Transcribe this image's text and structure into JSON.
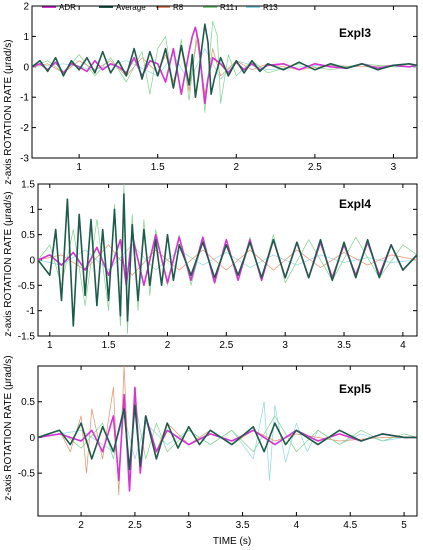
{
  "legend": {
    "position": "top-left",
    "entries": [
      {
        "name": "ADR",
        "color": "#d633d6"
      },
      {
        "name": "Average",
        "color": "#1d5c4a"
      },
      {
        "name": "R8",
        "color": "#e88e6a"
      },
      {
        "name": "R11",
        "color": "#7fd48e"
      },
      {
        "name": "R13",
        "color": "#8fd8e6"
      }
    ]
  },
  "ylabel": "z-axis ROTATION  RATE   (μrad/s)",
  "xlabel": "TIME (s)",
  "chart_data": [
    {
      "type": "line",
      "title": "Expl3",
      "xlim": [
        0.7,
        3.15
      ],
      "ylim": [
        -3,
        2
      ],
      "xticks": [
        "1",
        "1.5",
        "2",
        "2.5",
        "3"
      ],
      "xtick_values": [
        1,
        1.5,
        2,
        2.5,
        3
      ],
      "yticks": [
        "-3",
        "-2",
        "-1",
        "0",
        "1",
        "2"
      ],
      "ytick_values": [
        -3,
        -2,
        -1,
        0,
        1,
        2
      ],
      "grid": false,
      "series": [
        {
          "name": "ADR",
          "color": "#d633d6",
          "width": 1.6,
          "x": [
            0.7,
            0.75,
            0.8,
            0.85,
            0.9,
            0.95,
            1.0,
            1.05,
            1.1,
            1.15,
            1.2,
            1.25,
            1.3,
            1.35,
            1.4,
            1.45,
            1.5,
            1.55,
            1.6,
            1.65,
            1.7,
            1.72,
            1.74,
            1.76,
            1.78,
            1.8,
            1.82,
            1.85,
            1.9,
            1.95,
            2.0,
            2.05,
            2.1,
            2.15,
            2.2,
            2.3,
            2.4,
            2.5,
            2.6,
            2.7,
            2.8,
            2.9,
            3.0,
            3.1,
            3.15
          ],
          "y": [
            0,
            0.1,
            -0.1,
            0.15,
            -0.2,
            0.1,
            0,
            -0.15,
            0.2,
            -0.1,
            0.1,
            0,
            -0.2,
            0.3,
            -0.3,
            0.2,
            0.1,
            -0.5,
            0.6,
            -0.9,
            0.5,
            1.0,
            1.3,
            0.8,
            -0.2,
            -1.2,
            -0.4,
            0.3,
            0.1,
            -0.2,
            0.15,
            -0.1,
            0.1,
            -0.1,
            0.05,
            0.1,
            -0.1,
            0.1,
            0,
            -0.05,
            0.1,
            -0.05,
            0.05,
            0,
            0.05
          ]
        },
        {
          "name": "Average",
          "color": "#1d5c4a",
          "width": 1.6,
          "x": [
            0.7,
            0.75,
            0.8,
            0.85,
            0.9,
            0.95,
            1.0,
            1.05,
            1.1,
            1.15,
            1.2,
            1.25,
            1.3,
            1.35,
            1.4,
            1.45,
            1.5,
            1.55,
            1.6,
            1.65,
            1.7,
            1.72,
            1.74,
            1.76,
            1.78,
            1.8,
            1.82,
            1.84,
            1.86,
            1.9,
            1.95,
            2.0,
            2.05,
            2.1,
            2.15,
            2.2,
            2.3,
            2.4,
            2.5,
            2.6,
            2.7,
            2.8,
            2.9,
            3.0,
            3.1,
            3.15
          ],
          "y": [
            0,
            0.2,
            -0.15,
            0.3,
            -0.3,
            0.2,
            -0.1,
            0.3,
            -0.2,
            0.5,
            -0.2,
            0.2,
            -0.3,
            0.6,
            -0.4,
            0.5,
            -0.3,
            0.6,
            -0.7,
            0.7,
            -0.6,
            0.4,
            -1.0,
            -0.3,
            0.6,
            1.4,
            0.8,
            -0.9,
            -0.4,
            0.3,
            -0.3,
            0.2,
            -0.2,
            0.2,
            -0.15,
            0.1,
            -0.1,
            0.15,
            -0.1,
            0.1,
            -0.05,
            0.1,
            -0.1,
            0.05,
            0.1,
            0.05
          ]
        },
        {
          "name": "R8",
          "color": "#e88e6a",
          "width": 0.7,
          "x": [
            0.7,
            0.8,
            0.9,
            1.0,
            1.1,
            1.2,
            1.3,
            1.4,
            1.5,
            1.55,
            1.6,
            1.65,
            1.7,
            1.75,
            1.8,
            1.85,
            1.9,
            2.0,
            2.1,
            2.2,
            2.4,
            2.6,
            2.8,
            3.0,
            3.15
          ],
          "y": [
            0,
            0.1,
            -0.2,
            0.2,
            -0.1,
            0.2,
            -0.3,
            0.3,
            -0.2,
            0.4,
            -0.5,
            0.6,
            -0.8,
            0.9,
            -0.9,
            0.6,
            -0.3,
            0.2,
            -0.1,
            0.1,
            -0.1,
            0.05,
            0,
            0.05,
            0
          ]
        },
        {
          "name": "R11",
          "color": "#7fd48e",
          "width": 0.7,
          "x": [
            0.7,
            0.8,
            0.9,
            1.0,
            1.1,
            1.2,
            1.3,
            1.4,
            1.45,
            1.5,
            1.55,
            1.6,
            1.65,
            1.7,
            1.75,
            1.8,
            1.85,
            1.88,
            1.9,
            1.95,
            2.0,
            2.1,
            2.2,
            2.4,
            2.6,
            2.8,
            3.0,
            3.15
          ],
          "y": [
            0,
            0.2,
            -0.2,
            0.4,
            -0.3,
            0.3,
            -0.5,
            0.5,
            -0.9,
            0.6,
            1.0,
            -0.7,
            0.9,
            -1.1,
            1.2,
            -1.5,
            1.5,
            1.0,
            -1.2,
            0.4,
            -0.3,
            0.2,
            -0.2,
            0.1,
            -0.1,
            0.1,
            0,
            0
          ]
        },
        {
          "name": "R13",
          "color": "#8fd8e6",
          "width": 0.7,
          "x": [
            0.7,
            0.9,
            1.1,
            1.3,
            1.5,
            1.6,
            1.7,
            1.8,
            1.9,
            2.0,
            2.2,
            2.5,
            2.8,
            3.15
          ],
          "y": [
            0,
            0.1,
            -0.1,
            0.2,
            -0.3,
            0.4,
            -0.5,
            0.6,
            -0.4,
            0.2,
            -0.1,
            0.05,
            0,
            0
          ]
        }
      ]
    },
    {
      "type": "line",
      "title": "Expl4",
      "xlim": [
        0.9,
        4.12
      ],
      "ylim": [
        -1.5,
        1.5
      ],
      "xticks": [
        "1",
        "1.5",
        "2",
        "2.5",
        "3",
        "3.5",
        "4"
      ],
      "xtick_values": [
        1,
        1.5,
        2,
        2.5,
        3,
        3.5,
        4
      ],
      "yticks": [
        "-1.5",
        "-1",
        "-0.5",
        "0",
        "0.5",
        "1",
        "1.5"
      ],
      "ytick_values": [
        -1.5,
        -1,
        -0.5,
        0,
        0.5,
        1,
        1.5
      ],
      "grid": false,
      "series": [
        {
          "name": "ADR",
          "color": "#d633d6",
          "width": 1.6,
          "x": [
            0.9,
            1.0,
            1.1,
            1.2,
            1.3,
            1.4,
            1.5,
            1.6,
            1.65,
            1.7,
            1.8,
            1.9,
            2.0,
            2.1,
            2.2,
            2.3,
            2.4,
            2.5,
            2.6,
            2.7,
            2.8,
            2.9,
            3.0,
            3.1,
            3.2,
            3.3,
            3.4,
            3.5,
            3.6,
            3.7,
            3.8,
            3.9,
            4.0,
            4.12
          ],
          "y": [
            0,
            0.1,
            -0.1,
            0.15,
            -0.2,
            0.25,
            -0.3,
            0.4,
            -0.5,
            0.5,
            -0.5,
            0.5,
            -0.45,
            0.45,
            -0.4,
            0.45,
            -0.45,
            0.4,
            -0.4,
            0.4,
            -0.4,
            0.4,
            -0.35,
            0.35,
            -0.35,
            0.35,
            -0.35,
            0.3,
            -0.3,
            0.35,
            -0.3,
            0.3,
            -0.2,
            0.1
          ]
        },
        {
          "name": "Average",
          "color": "#1d5c4a",
          "width": 1.6,
          "x": [
            0.9,
            1.0,
            1.05,
            1.1,
            1.15,
            1.2,
            1.25,
            1.3,
            1.35,
            1.4,
            1.45,
            1.5,
            1.55,
            1.6,
            1.63,
            1.66,
            1.7,
            1.75,
            1.8,
            1.85,
            1.9,
            1.95,
            2.0,
            2.05,
            2.1,
            2.2,
            2.3,
            2.4,
            2.5,
            2.6,
            2.7,
            2.8,
            2.9,
            3.0,
            3.1,
            3.2,
            3.3,
            3.4,
            3.5,
            3.6,
            3.7,
            3.8,
            3.9,
            4.0,
            4.12
          ],
          "y": [
            0,
            -0.3,
            0.6,
            -0.8,
            1.2,
            -1.3,
            0.9,
            -0.7,
            0.8,
            -0.9,
            0.6,
            -0.8,
            1.0,
            -1.1,
            1.3,
            -1.2,
            0.7,
            -0.8,
            0.6,
            -0.5,
            0.4,
            -0.5,
            0.5,
            -0.4,
            0.3,
            -0.3,
            0.35,
            -0.35,
            0.3,
            -0.3,
            0.35,
            -0.35,
            0.4,
            -0.35,
            0.35,
            -0.35,
            0.4,
            -0.4,
            0.35,
            -0.35,
            0.4,
            -0.35,
            0.3,
            -0.2,
            0.1
          ]
        },
        {
          "name": "R8",
          "color": "#e88e6a",
          "width": 0.7,
          "x": [
            0.9,
            1.1,
            1.3,
            1.5,
            1.7,
            1.9,
            2.1,
            2.3,
            2.5,
            2.7,
            2.9,
            3.1,
            3.3,
            3.5,
            3.7,
            3.9,
            4.12
          ],
          "y": [
            0,
            0.1,
            -0.2,
            0.3,
            -0.3,
            0.2,
            -0.2,
            0.2,
            -0.2,
            0.2,
            -0.2,
            0.2,
            -0.15,
            0.15,
            -0.1,
            0.1,
            0
          ]
        },
        {
          "name": "R11",
          "color": "#7fd48e",
          "width": 0.7,
          "x": [
            0.9,
            1.0,
            1.1,
            1.2,
            1.3,
            1.4,
            1.5,
            1.55,
            1.6,
            1.63,
            1.66,
            1.7,
            1.75,
            1.8,
            1.85,
            1.9,
            2.0,
            2.1,
            2.2,
            2.3,
            2.4,
            2.5,
            2.6,
            2.7,
            2.8,
            2.9,
            3.0,
            3.2,
            3.4,
            3.6,
            3.8,
            4.0,
            4.12
          ],
          "y": [
            0,
            0.3,
            -0.5,
            0.6,
            -0.9,
            0.8,
            -1.0,
            1.1,
            -1.3,
            1.5,
            -1.45,
            0.9,
            -1.0,
            0.8,
            -0.7,
            0.6,
            -0.5,
            0.5,
            -0.5,
            0.4,
            -0.45,
            0.4,
            -0.4,
            0.45,
            -0.4,
            0.5,
            -0.45,
            0.4,
            -0.4,
            0.45,
            -0.35,
            0.3,
            0.1
          ]
        },
        {
          "name": "R13",
          "color": "#8fd8e6",
          "width": 0.7,
          "x": [
            0.9,
            1.1,
            1.3,
            1.5,
            1.7,
            1.9,
            2.1,
            2.3,
            2.5,
            2.7,
            2.9,
            3.1,
            3.3,
            3.5,
            3.7,
            3.9,
            4.12
          ],
          "y": [
            0,
            -0.1,
            0.2,
            -0.2,
            0.3,
            -0.2,
            0.2,
            -0.1,
            0.15,
            -0.15,
            0.1,
            -0.1,
            0.1,
            -0.05,
            0.05,
            -0.05,
            0
          ]
        }
      ]
    },
    {
      "type": "line",
      "title": "Expl5",
      "xlim": [
        1.6,
        5.12
      ],
      "ylim": [
        -1.1,
        1.0
      ],
      "xticks": [
        "2",
        "2.5",
        "3",
        "3.5",
        "4",
        "4.5",
        "5"
      ],
      "xtick_values": [
        2,
        2.5,
        3,
        3.5,
        4,
        4.5,
        5
      ],
      "yticks": [
        "-0.5",
        "0",
        "0.5"
      ],
      "ytick_values": [
        -0.5,
        0,
        0.5
      ],
      "grid": false,
      "series": [
        {
          "name": "ADR",
          "color": "#d633d6",
          "width": 1.6,
          "x": [
            1.6,
            1.8,
            2.0,
            2.1,
            2.2,
            2.3,
            2.35,
            2.4,
            2.45,
            2.5,
            2.55,
            2.6,
            2.7,
            2.8,
            3.0,
            3.2,
            3.4,
            3.6,
            3.8,
            4.0,
            4.2,
            4.4,
            4.6,
            4.8,
            5.0,
            5.12
          ],
          "y": [
            0,
            0.05,
            -0.05,
            0.1,
            -0.2,
            0.3,
            -0.6,
            0.6,
            -0.75,
            0.7,
            -0.5,
            0.3,
            -0.2,
            0.1,
            -0.1,
            0.05,
            -0.05,
            0.1,
            -0.1,
            0.1,
            -0.05,
            0.05,
            -0.05,
            0.05,
            0,
            0
          ]
        },
        {
          "name": "Average",
          "color": "#1d5c4a",
          "width": 1.6,
          "x": [
            1.6,
            1.8,
            1.9,
            2.0,
            2.1,
            2.2,
            2.3,
            2.4,
            2.45,
            2.5,
            2.55,
            2.6,
            2.7,
            2.8,
            2.9,
            3.0,
            3.1,
            3.2,
            3.4,
            3.6,
            3.7,
            3.8,
            3.9,
            4.0,
            4.2,
            4.4,
            4.6,
            4.8,
            5.0,
            5.12
          ],
          "y": [
            0,
            0.1,
            -0.1,
            0.2,
            -0.3,
            0.15,
            -0.2,
            0.4,
            -0.45,
            0.45,
            -0.4,
            0.3,
            -0.3,
            0.2,
            -0.15,
            0.15,
            -0.1,
            0.1,
            -0.1,
            0.15,
            -0.2,
            0.2,
            -0.1,
            0.1,
            -0.1,
            0.1,
            -0.05,
            0.05,
            0,
            0
          ]
        },
        {
          "name": "R8",
          "color": "#e88e6a",
          "width": 0.7,
          "x": [
            1.6,
            1.8,
            1.9,
            2.0,
            2.05,
            2.1,
            2.2,
            2.3,
            2.35,
            2.4,
            2.45,
            2.5,
            2.55,
            2.6,
            2.7,
            2.8,
            3.0,
            3.2,
            3.4,
            3.6,
            3.8,
            4.0,
            4.4,
            4.8,
            5.12
          ],
          "y": [
            0,
            0.1,
            -0.2,
            0.3,
            -0.5,
            0.4,
            -0.3,
            0.7,
            -0.8,
            1.0,
            -0.7,
            0.6,
            -0.5,
            0.3,
            -0.2,
            0.2,
            -0.1,
            0.1,
            -0.1,
            0.1,
            -0.05,
            0.05,
            -0.05,
            0,
            0
          ]
        },
        {
          "name": "R11",
          "color": "#7fd48e",
          "width": 0.7,
          "x": [
            1.6,
            1.8,
            2.0,
            2.2,
            2.3,
            2.4,
            2.45,
            2.5,
            2.6,
            2.7,
            2.8,
            3.0,
            3.2,
            3.4,
            3.6,
            3.8,
            4.0,
            4.2,
            4.4,
            4.6,
            4.8,
            5.0,
            5.12
          ],
          "y": [
            0,
            0.1,
            -0.15,
            0.2,
            -0.3,
            0.5,
            -0.6,
            0.5,
            -0.3,
            0.2,
            -0.2,
            0.1,
            -0.1,
            0.1,
            -0.2,
            0.3,
            -0.2,
            0.1,
            -0.1,
            0.1,
            -0.05,
            0.05,
            0
          ]
        },
        {
          "name": "R13",
          "color": "#8fd8e6",
          "width": 0.7,
          "x": [
            1.6,
            2.0,
            2.3,
            2.4,
            2.5,
            2.6,
            2.8,
            3.0,
            3.2,
            3.4,
            3.6,
            3.7,
            3.75,
            3.8,
            3.9,
            4.0,
            4.1,
            4.2,
            4.4,
            4.6,
            4.8,
            5.0,
            5.12
          ],
          "y": [
            0,
            0.1,
            -0.2,
            0.3,
            -0.3,
            0.2,
            -0.1,
            0.1,
            -0.1,
            0.1,
            -0.3,
            0.5,
            -0.6,
            0.45,
            -0.35,
            0.2,
            -0.2,
            0.1,
            -0.1,
            0.05,
            -0.05,
            0,
            0
          ]
        }
      ]
    }
  ]
}
